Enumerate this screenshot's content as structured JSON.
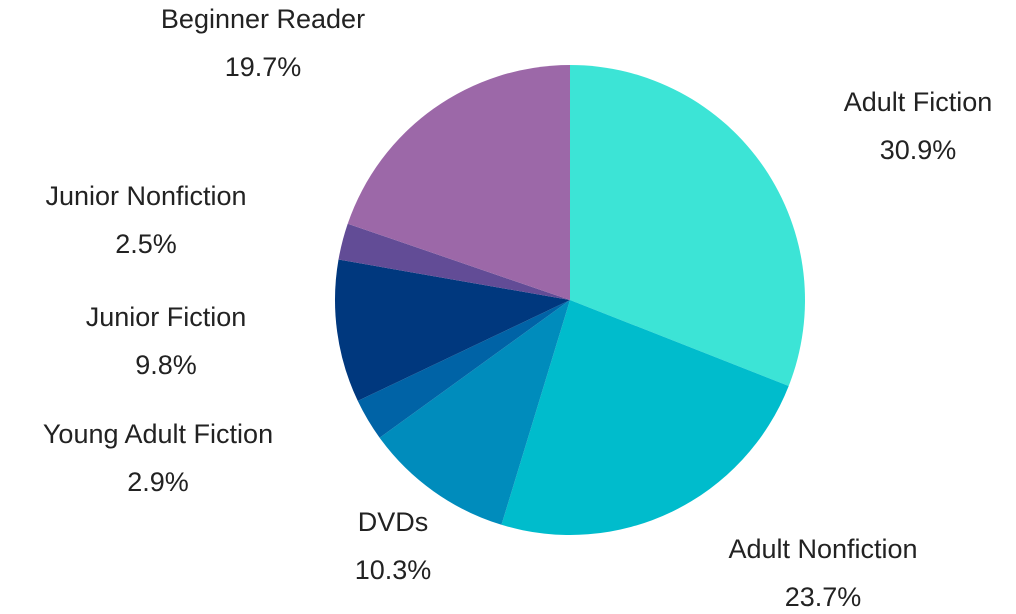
{
  "chart_data": {
    "type": "pie",
    "categories": [
      "Adult Fiction",
      "Adult Nonfiction",
      "DVDs",
      "Young Adult Fiction",
      "Junior Fiction",
      "Junior Nonfiction",
      "Beginner Reader"
    ],
    "values": [
      30.9,
      23.7,
      10.3,
      2.9,
      9.8,
      2.5,
      19.7
    ],
    "value_labels": [
      "30.9%",
      "23.7%",
      "10.3%",
      "2.9%",
      "9.8%",
      "2.5%",
      "19.7%"
    ],
    "colors": [
      "#3ce4d6",
      "#00bccc",
      "#008cbc",
      "#0063a6",
      "#00387e",
      "#624c96",
      "#9c68a8"
    ]
  }
}
